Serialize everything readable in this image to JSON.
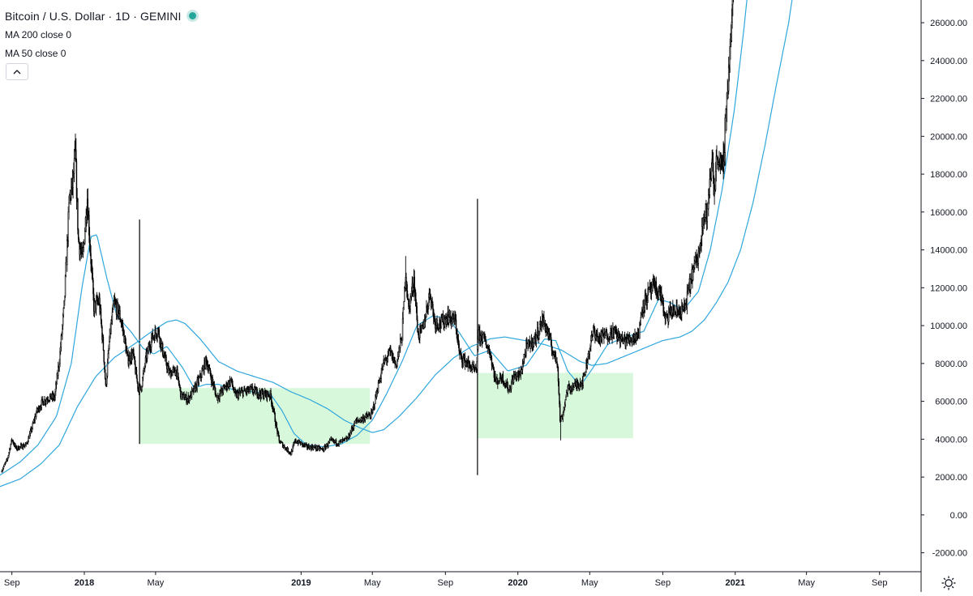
{
  "legend": {
    "title": "Bitcoin / U.S. Dollar · 1D · GEMINI",
    "ma200_label": "MA 200 close 0",
    "ma50_label": "MA 50 close 0"
  },
  "colors": {
    "candle": "#000000",
    "ma": "#2fa7dd",
    "zone_fill": "#d8f8dc",
    "axis": "#131722",
    "status_dot": "#26a69a"
  },
  "chart_data": {
    "type": "line",
    "symbol": "Bitcoin / U.S. Dollar",
    "interval": "1D",
    "exchange": "GEMINI",
    "y_axis_side": "right",
    "ylim": [
      -3000,
      27200
    ],
    "xlim": [
      "2017-08-12",
      "2021-11-10"
    ],
    "grid": false,
    "y_ticks": [
      "-2000.00",
      "0.00",
      "2000.00",
      "4000.00",
      "6000.00",
      "8000.00",
      "10000.00",
      "12000.00",
      "14000.00",
      "16000.00",
      "18000.00",
      "20000.00",
      "22000.00",
      "24000.00",
      "26000.00"
    ],
    "x_ticks": [
      {
        "label": "Sep",
        "date": "2017-09-01",
        "bold": false
      },
      {
        "label": "2018",
        "date": "2018-01-01",
        "bold": true
      },
      {
        "label": "May",
        "date": "2018-05-01",
        "bold": false
      },
      {
        "label": "2019",
        "date": "2019-01-01",
        "bold": true
      },
      {
        "label": "May",
        "date": "2019-05-01",
        "bold": false
      },
      {
        "label": "Sep",
        "date": "2019-09-01",
        "bold": false
      },
      {
        "label": "2020",
        "date": "2020-01-01",
        "bold": true
      },
      {
        "label": "May",
        "date": "2020-05-01",
        "bold": false
      },
      {
        "label": "Sep",
        "date": "2020-09-01",
        "bold": false
      },
      {
        "label": "2021",
        "date": "2021-01-01",
        "bold": true
      },
      {
        "label": "May",
        "date": "2021-05-01",
        "bold": false
      },
      {
        "label": "Sep",
        "date": "2021-09-01",
        "bold": false
      }
    ],
    "series": [
      {
        "name": "BTCUSD",
        "style": "candles",
        "points": [
          [
            "2017-08-14",
            2300
          ],
          [
            "2017-08-24",
            2900
          ],
          [
            "2017-09-01",
            4000
          ],
          [
            "2017-09-08",
            3500
          ],
          [
            "2017-09-15",
            3600
          ],
          [
            "2017-09-25",
            3700
          ],
          [
            "2017-10-05",
            4600
          ],
          [
            "2017-10-12",
            5400
          ],
          [
            "2017-10-21",
            5900
          ],
          [
            "2017-11-01",
            6200
          ],
          [
            "2017-11-12",
            6200
          ],
          [
            "2017-11-20",
            8200
          ],
          [
            "2017-11-28",
            11000
          ],
          [
            "2017-12-07",
            16800
          ],
          [
            "2017-12-12",
            17400
          ],
          [
            "2017-12-17",
            19000
          ],
          [
            "2017-12-22",
            14500
          ],
          [
            "2017-12-29",
            13500
          ],
          [
            "2018-01-06",
            16800
          ],
          [
            "2018-01-11",
            14000
          ],
          [
            "2018-01-17",
            11000
          ],
          [
            "2018-01-26",
            11300
          ],
          [
            "2018-02-02",
            8800
          ],
          [
            "2018-02-06",
            6700
          ],
          [
            "2018-02-13",
            9500
          ],
          [
            "2018-02-20",
            11200
          ],
          [
            "2018-03-01",
            10600
          ],
          [
            "2018-03-07",
            9800
          ],
          [
            "2018-03-15",
            8200
          ],
          [
            "2018-03-24",
            8500
          ],
          [
            "2018-04-01",
            6800
          ],
          [
            "2018-04-06",
            6600
          ],
          [
            "2018-04-15",
            8300
          ],
          [
            "2018-04-24",
            9300
          ],
          [
            "2018-05-05",
            9800
          ],
          [
            "2018-05-14",
            8500
          ],
          [
            "2018-05-24",
            7500
          ],
          [
            "2018-06-05",
            7600
          ],
          [
            "2018-06-13",
            6300
          ],
          [
            "2018-06-24",
            6100
          ],
          [
            "2018-07-05",
            6600
          ],
          [
            "2018-07-17",
            7400
          ],
          [
            "2018-07-25",
            8200
          ],
          [
            "2018-08-05",
            7000
          ],
          [
            "2018-08-12",
            6200
          ],
          [
            "2018-08-25",
            6700
          ],
          [
            "2018-09-05",
            7100
          ],
          [
            "2018-09-12",
            6300
          ],
          [
            "2018-09-25",
            6500
          ],
          [
            "2018-10-10",
            6600
          ],
          [
            "2018-10-25",
            6400
          ],
          [
            "2018-11-10",
            6350
          ],
          [
            "2018-11-15",
            5600
          ],
          [
            "2018-11-20",
            4700
          ],
          [
            "2018-11-25",
            3900
          ],
          [
            "2018-12-07",
            3500
          ],
          [
            "2018-12-15",
            3250
          ],
          [
            "2018-12-22",
            3900
          ],
          [
            "2018-12-30",
            3800
          ],
          [
            "2019-01-10",
            3600
          ],
          [
            "2019-01-25",
            3550
          ],
          [
            "2019-02-07",
            3450
          ],
          [
            "2019-02-20",
            3900
          ],
          [
            "2019-03-05",
            3800
          ],
          [
            "2019-03-20",
            4000
          ],
          [
            "2019-04-02",
            4900
          ],
          [
            "2019-04-15",
            5100
          ],
          [
            "2019-04-30",
            5300
          ],
          [
            "2019-05-12",
            7000
          ],
          [
            "2019-05-20",
            8000
          ],
          [
            "2019-05-31",
            8600
          ],
          [
            "2019-06-10",
            7900
          ],
          [
            "2019-06-20",
            9500
          ],
          [
            "2019-06-26",
            12900
          ],
          [
            "2019-07-01",
            10800
          ],
          [
            "2019-07-10",
            12500
          ],
          [
            "2019-07-17",
            9500
          ],
          [
            "2019-07-25",
            9800
          ],
          [
            "2019-08-06",
            11800
          ],
          [
            "2019-08-14",
            10200
          ],
          [
            "2019-08-25",
            10100
          ],
          [
            "2019-09-05",
            10500
          ],
          [
            "2019-09-18",
            10200
          ],
          [
            "2019-09-25",
            8400
          ],
          [
            "2019-10-05",
            8100
          ],
          [
            "2019-10-23",
            7500
          ],
          [
            "2019-10-26",
            9500
          ],
          [
            "2019-11-05",
            9300
          ],
          [
            "2019-11-15",
            8600
          ],
          [
            "2019-11-25",
            7000
          ],
          [
            "2019-12-05",
            7300
          ],
          [
            "2019-12-17",
            6600
          ],
          [
            "2019-12-25",
            7300
          ],
          [
            "2020-01-05",
            7400
          ],
          [
            "2020-01-15",
            8800
          ],
          [
            "2020-01-30",
            9300
          ],
          [
            "2020-02-12",
            10300
          ],
          [
            "2020-02-20",
            9700
          ],
          [
            "2020-02-28",
            8700
          ],
          [
            "2020-03-08",
            8000
          ],
          [
            "2020-03-12",
            5000
          ],
          [
            "2020-03-16",
            5200
          ],
          [
            "2020-03-24",
            6600
          ],
          [
            "2020-04-05",
            6800
          ],
          [
            "2020-04-20",
            7100
          ],
          [
            "2020-04-30",
            8700
          ],
          [
            "2020-05-08",
            9800
          ],
          [
            "2020-05-15",
            9300
          ],
          [
            "2020-05-28",
            9500
          ],
          [
            "2020-06-10",
            9700
          ],
          [
            "2020-06-25",
            9200
          ],
          [
            "2020-07-10",
            9300
          ],
          [
            "2020-07-23",
            9600
          ],
          [
            "2020-07-28",
            11000
          ],
          [
            "2020-08-10",
            11800
          ],
          [
            "2020-08-17",
            12000
          ],
          [
            "2020-08-30",
            11600
          ],
          [
            "2020-09-05",
            10200
          ],
          [
            "2020-09-15",
            10800
          ],
          [
            "2020-09-25",
            10700
          ],
          [
            "2020-10-08",
            10900
          ],
          [
            "2020-10-21",
            12800
          ],
          [
            "2020-11-01",
            13800
          ],
          [
            "2020-11-06",
            15500
          ],
          [
            "2020-11-15",
            16000
          ],
          [
            "2020-11-24",
            19000
          ],
          [
            "2020-11-26",
            17000
          ],
          [
            "2020-12-02",
            19200
          ],
          [
            "2020-12-11",
            18000
          ],
          [
            "2020-12-16",
            21000
          ],
          [
            "2020-12-21",
            23500
          ],
          [
            "2020-12-26",
            26000
          ],
          [
            "2020-12-30",
            28500
          ]
        ]
      },
      {
        "name": "MA 200 close 0",
        "style": "line",
        "points": [
          [
            "2017-08-12",
            1500
          ],
          [
            "2017-09-15",
            1900
          ],
          [
            "2017-10-20",
            2700
          ],
          [
            "2017-11-20",
            3700
          ],
          [
            "2017-12-20",
            5700
          ],
          [
            "2018-01-20",
            7300
          ],
          [
            "2018-02-20",
            8300
          ],
          [
            "2018-03-25",
            9000
          ],
          [
            "2018-04-25",
            9700
          ],
          [
            "2018-05-20",
            10200
          ],
          [
            "2018-06-05",
            10300
          ],
          [
            "2018-06-20",
            10100
          ],
          [
            "2018-07-15",
            9300
          ],
          [
            "2018-08-15",
            8100
          ],
          [
            "2018-09-15",
            7600
          ],
          [
            "2018-10-15",
            7300
          ],
          [
            "2018-11-15",
            7000
          ],
          [
            "2018-12-15",
            6500
          ],
          [
            "2019-01-15",
            6100
          ],
          [
            "2019-02-15",
            5600
          ],
          [
            "2019-03-15",
            5000
          ],
          [
            "2019-04-10",
            4600
          ],
          [
            "2019-05-01",
            4350
          ],
          [
            "2019-05-20",
            4500
          ],
          [
            "2019-06-15",
            5200
          ],
          [
            "2019-07-15",
            6200
          ],
          [
            "2019-08-15",
            7400
          ],
          [
            "2019-09-15",
            8300
          ],
          [
            "2019-10-15",
            8900
          ],
          [
            "2019-11-15",
            9300
          ],
          [
            "2019-12-10",
            9400
          ],
          [
            "2020-01-15",
            9200
          ],
          [
            "2020-02-15",
            9000
          ],
          [
            "2020-03-15",
            8700
          ],
          [
            "2020-04-15",
            8100
          ],
          [
            "2020-05-05",
            7900
          ],
          [
            "2020-05-30",
            8000
          ],
          [
            "2020-06-30",
            8400
          ],
          [
            "2020-07-31",
            8800
          ],
          [
            "2020-08-31",
            9200
          ],
          [
            "2020-09-30",
            9400
          ],
          [
            "2020-10-20",
            9700
          ],
          [
            "2020-11-10",
            10300
          ],
          [
            "2020-11-30",
            11200
          ],
          [
            "2020-12-20",
            12300
          ],
          [
            "2021-01-10",
            14000
          ],
          [
            "2021-01-31",
            16500
          ],
          [
            "2021-02-20",
            19500
          ],
          [
            "2021-03-10",
            22500
          ],
          [
            "2021-04-01",
            26000
          ],
          [
            "2021-04-15",
            29000
          ]
        ]
      },
      {
        "name": "MA 50 close 0",
        "style": "line",
        "points": [
          [
            "2017-08-12",
            2100
          ],
          [
            "2017-09-15",
            2800
          ],
          [
            "2017-10-15",
            3700
          ],
          [
            "2017-11-15",
            5200
          ],
          [
            "2017-12-10",
            8000
          ],
          [
            "2017-12-28",
            12000
          ],
          [
            "2018-01-12",
            14700
          ],
          [
            "2018-01-22",
            14800
          ],
          [
            "2018-02-08",
            12500
          ],
          [
            "2018-02-25",
            10500
          ],
          [
            "2018-03-20",
            9700
          ],
          [
            "2018-04-10",
            8800
          ],
          [
            "2018-04-28",
            8500
          ],
          [
            "2018-05-20",
            8900
          ],
          [
            "2018-06-15",
            7800
          ],
          [
            "2018-07-05",
            6700
          ],
          [
            "2018-07-25",
            6900
          ],
          [
            "2018-08-15",
            6900
          ],
          [
            "2018-09-10",
            6600
          ],
          [
            "2018-10-15",
            6500
          ],
          [
            "2018-11-10",
            6400
          ],
          [
            "2018-11-30",
            5500
          ],
          [
            "2018-12-20",
            4300
          ],
          [
            "2019-01-10",
            3700
          ],
          [
            "2019-02-10",
            3600
          ],
          [
            "2019-03-10",
            3750
          ],
          [
            "2019-04-05",
            4200
          ],
          [
            "2019-05-01",
            5000
          ],
          [
            "2019-05-25",
            6400
          ],
          [
            "2019-06-20",
            8100
          ],
          [
            "2019-07-15",
            10000
          ],
          [
            "2019-08-10",
            10500
          ],
          [
            "2019-09-05",
            10400
          ],
          [
            "2019-09-25",
            9600
          ],
          [
            "2019-10-20",
            8400
          ],
          [
            "2019-11-15",
            8700
          ],
          [
            "2019-12-15",
            7600
          ],
          [
            "2020-01-15",
            7900
          ],
          [
            "2020-02-15",
            9300
          ],
          [
            "2020-03-05",
            9200
          ],
          [
            "2020-03-25",
            7600
          ],
          [
            "2020-04-15",
            6800
          ],
          [
            "2020-05-05",
            7700
          ],
          [
            "2020-05-31",
            9000
          ],
          [
            "2020-06-30",
            9400
          ],
          [
            "2020-07-31",
            9700
          ],
          [
            "2020-08-25",
            11400
          ],
          [
            "2020-09-15",
            11200
          ],
          [
            "2020-10-05",
            10800
          ],
          [
            "2020-10-31",
            11800
          ],
          [
            "2020-11-20",
            14000
          ],
          [
            "2020-12-10",
            17200
          ],
          [
            "2020-12-31",
            21500
          ],
          [
            "2021-01-15",
            25500
          ],
          [
            "2021-01-25",
            28500
          ]
        ]
      }
    ],
    "annotations": {
      "zones": [
        {
          "x0": "2018-04-04",
          "x1": "2019-04-27",
          "y0": 3750,
          "y1": 6700
        },
        {
          "x0": "2019-10-25",
          "x1": "2020-07-13",
          "y0": 4050,
          "y1": 7500
        }
      ],
      "vlines": [
        {
          "x": "2018-04-04",
          "y0": 3750,
          "y1": 15600
        },
        {
          "x": "2019-10-25",
          "y0": 2100,
          "y1": 16700
        }
      ]
    }
  }
}
